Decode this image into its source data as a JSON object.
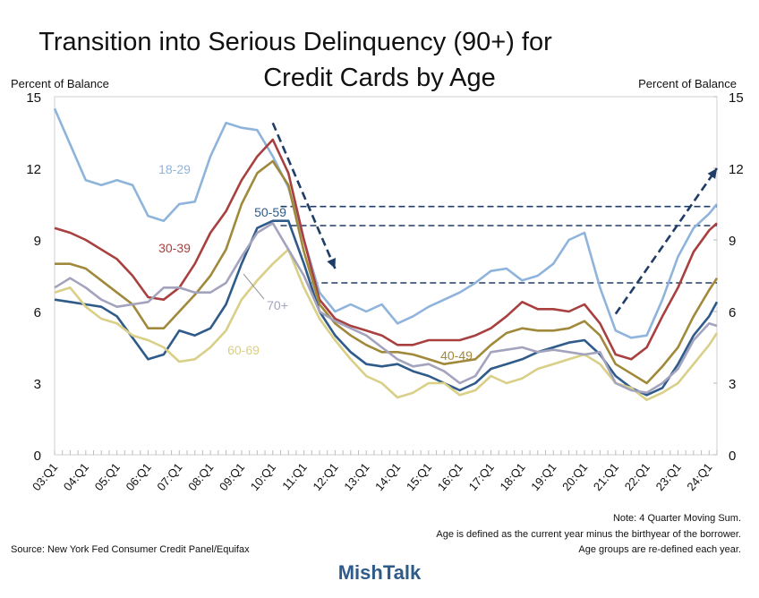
{
  "chart_data": {
    "type": "line",
    "title": [
      "Transition into Serious Delinquency (90+) for",
      "Credit Cards by Age"
    ],
    "ylabel_left": "Percent of Balance",
    "ylabel_right": "Percent of Balance",
    "ylim": [
      0,
      15
    ],
    "yticks": [
      0,
      3,
      6,
      9,
      12,
      15
    ],
    "xtick_labels": [
      "03:Q1",
      "04:Q1",
      "05:Q1",
      "06:Q1",
      "07:Q1",
      "08:Q1",
      "09:Q1",
      "10:Q1",
      "11:Q1",
      "12:Q1",
      "13:Q1",
      "14:Q1",
      "15:Q1",
      "16:Q1",
      "17:Q1",
      "18:Q1",
      "19:Q1",
      "20:Q1",
      "21:Q1",
      "22:Q1",
      "23:Q1",
      "24:Q1"
    ],
    "xlim": [
      "03:Q1",
      "24:Q2"
    ],
    "grid": false,
    "x": [
      "03:Q1",
      "03:Q3",
      "04:Q1",
      "04:Q3",
      "05:Q1",
      "05:Q3",
      "06:Q1",
      "06:Q3",
      "07:Q1",
      "07:Q3",
      "08:Q1",
      "08:Q3",
      "09:Q1",
      "09:Q3",
      "10:Q1",
      "10:Q3",
      "11:Q1",
      "11:Q3",
      "12:Q1",
      "12:Q3",
      "13:Q1",
      "13:Q3",
      "14:Q1",
      "14:Q3",
      "15:Q1",
      "15:Q3",
      "16:Q1",
      "16:Q3",
      "17:Q1",
      "17:Q3",
      "18:Q1",
      "18:Q3",
      "19:Q1",
      "19:Q3",
      "20:Q1",
      "20:Q3",
      "21:Q1",
      "21:Q3",
      "22:Q1",
      "22:Q3",
      "23:Q1",
      "23:Q3",
      "24:Q1",
      "24:Q2"
    ],
    "series": [
      {
        "name": "18-29",
        "color": "#8FB4DC",
        "values": [
          14.5,
          13.0,
          11.5,
          11.3,
          11.5,
          11.3,
          10.0,
          9.8,
          10.5,
          10.6,
          12.5,
          13.9,
          13.7,
          13.6,
          12.5,
          11.2,
          9.0,
          6.8,
          6.0,
          6.3,
          6.0,
          6.3,
          5.5,
          5.8,
          6.2,
          6.5,
          6.8,
          7.2,
          7.7,
          7.8,
          7.3,
          7.5,
          8.0,
          9.0,
          9.3,
          7.0,
          5.2,
          4.9,
          5.0,
          6.5,
          8.3,
          9.5,
          10.1,
          10.5
        ]
      },
      {
        "name": "30-39",
        "color": "#A8403F",
        "values": [
          9.5,
          9.3,
          9.0,
          8.6,
          8.2,
          7.5,
          6.6,
          6.5,
          7.0,
          8.0,
          9.3,
          10.2,
          11.5,
          12.5,
          13.2,
          11.8,
          9.0,
          6.5,
          5.7,
          5.4,
          5.2,
          5.0,
          4.6,
          4.6,
          4.8,
          4.8,
          4.8,
          5.0,
          5.3,
          5.8,
          6.4,
          6.1,
          6.1,
          6.0,
          6.3,
          5.5,
          4.2,
          4.0,
          4.5,
          5.8,
          7.0,
          8.5,
          9.4,
          9.7
        ]
      },
      {
        "name": "40-49",
        "color": "#A0893A",
        "values": [
          8.0,
          8.0,
          7.8,
          7.3,
          6.8,
          6.3,
          5.3,
          5.3,
          6.0,
          6.7,
          7.5,
          8.6,
          10.5,
          11.8,
          12.3,
          11.3,
          8.5,
          6.3,
          5.5,
          5.0,
          4.6,
          4.3,
          4.3,
          4.2,
          4.0,
          3.8,
          3.9,
          4.0,
          4.6,
          5.1,
          5.3,
          5.2,
          5.2,
          5.3,
          5.6,
          5.0,
          3.8,
          3.4,
          3.0,
          3.7,
          4.5,
          5.8,
          6.9,
          7.4
        ]
      },
      {
        "name": "50-59",
        "color": "#2F5B8A",
        "values": [
          6.5,
          6.4,
          6.3,
          6.2,
          5.8,
          4.9,
          4.0,
          4.2,
          5.2,
          5.0,
          5.3,
          6.3,
          8.0,
          9.5,
          9.8,
          9.8,
          8.0,
          6.0,
          5.0,
          4.3,
          3.8,
          3.7,
          3.8,
          3.5,
          3.3,
          3.0,
          2.7,
          3.0,
          3.6,
          3.8,
          4.0,
          4.3,
          4.5,
          4.7,
          4.8,
          4.2,
          3.3,
          2.8,
          2.5,
          2.8,
          3.8,
          5.0,
          5.8,
          6.4
        ]
      },
      {
        "name": "60-69",
        "color": "#D9CF87",
        "values": [
          6.8,
          7.0,
          6.2,
          5.7,
          5.5,
          5.0,
          4.8,
          4.5,
          3.9,
          4.0,
          4.5,
          5.2,
          6.5,
          7.3,
          8.0,
          8.6,
          7.0,
          5.7,
          4.8,
          4.0,
          3.3,
          3.0,
          2.4,
          2.6,
          3.0,
          3.0,
          2.5,
          2.7,
          3.3,
          3.0,
          3.2,
          3.6,
          3.8,
          4.0,
          4.2,
          3.8,
          3.0,
          2.8,
          2.3,
          2.6,
          3.0,
          3.8,
          4.6,
          5.1
        ]
      },
      {
        "name": "70+",
        "color": "#A3A3BE",
        "values": [
          7.0,
          7.4,
          7.0,
          6.5,
          6.2,
          6.3,
          6.4,
          7.0,
          7.0,
          6.8,
          6.8,
          7.2,
          8.3,
          9.3,
          9.7,
          8.6,
          7.5,
          6.0,
          5.6,
          5.3,
          5.0,
          4.5,
          4.0,
          3.7,
          3.8,
          3.5,
          3.0,
          3.3,
          4.3,
          4.4,
          4.5,
          4.3,
          4.4,
          4.3,
          4.2,
          4.3,
          3.0,
          2.7,
          2.6,
          3.0,
          3.6,
          4.8,
          5.5,
          5.4
        ]
      }
    ],
    "reference_lines": [
      {
        "y": 10.4,
        "from": "10:Q2",
        "to": "24:Q2",
        "style": "dashed"
      },
      {
        "y": 9.6,
        "from": "10:Q2",
        "to": "24:Q2",
        "style": "dashed"
      },
      {
        "y": 7.2,
        "from": "11:Q2",
        "to": "24:Q2",
        "style": "dashed"
      }
    ],
    "arrows": [
      {
        "from": [
          "10:Q1",
          13.9
        ],
        "to": [
          "12:Q1",
          7.8
        ],
        "style": "dashed"
      },
      {
        "from": [
          "21:Q1",
          5.9
        ],
        "to": [
          "24:Q2",
          12.0
        ],
        "style": "dashed"
      }
    ],
    "annotation_color": "#1F3D66",
    "notes": [
      "Note: 4 Quarter Moving Sum.",
      "Age is defined as the current year minus the birthyear of the borrower.",
      "Age groups are re-defined each year."
    ],
    "source": "Source: New York Fed Consumer Credit Panel/Equifax"
  },
  "brand": {
    "name": "MishTalk",
    "color": "#2F5B8A"
  }
}
